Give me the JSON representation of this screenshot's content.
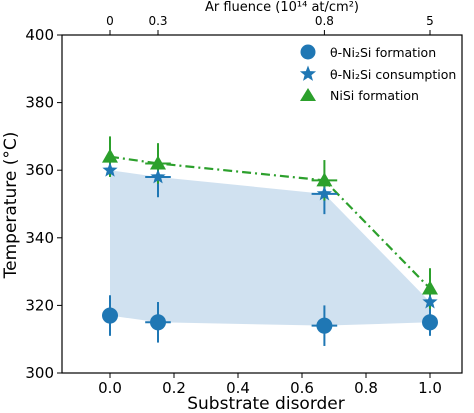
{
  "chart_data": {
    "type": "scatter",
    "xlabel": "Substrate disorder",
    "ylabel": "Temperature (°C)",
    "top_axis_label": "Ar fluence (10¹⁴ at/cm²)",
    "xlim": [
      -0.15,
      1.1
    ],
    "ylim": [
      300,
      400
    ],
    "x_ticks": [
      "0.0",
      "0.2",
      "0.4",
      "0.6",
      "0.8",
      "1.0"
    ],
    "x_tick_values": [
      0.0,
      0.2,
      0.4,
      0.6,
      0.8,
      1.0
    ],
    "y_ticks": [
      "300",
      "320",
      "340",
      "360",
      "380",
      "400"
    ],
    "y_tick_values": [
      300,
      320,
      340,
      360,
      380,
      400
    ],
    "top_ticks": [
      "0",
      "0.3",
      "0.8",
      "5"
    ],
    "top_tick_positions": [
      0.0,
      0.15,
      0.67,
      1.0
    ],
    "legend_position": "top-right",
    "series": [
      {
        "name": "θ-Ni₂Si formation",
        "marker": "circle",
        "color": "#1f77b4",
        "points": [
          {
            "x": 0.0,
            "y": 317,
            "xerr": 0.0,
            "yerr": 6
          },
          {
            "x": 0.15,
            "y": 315,
            "xerr": 0.04,
            "yerr": 6
          },
          {
            "x": 0.67,
            "y": 314,
            "xerr": 0.04,
            "yerr": 6
          },
          {
            "x": 1.0,
            "y": 315,
            "xerr": 0.0,
            "yerr": 4
          }
        ]
      },
      {
        "name": "θ-Ni₂Si consumption",
        "marker": "star",
        "color": "#1f77b4",
        "points": [
          {
            "x": 0.0,
            "y": 360,
            "xerr": 0.0,
            "yerr": 0
          },
          {
            "x": 0.15,
            "y": 358,
            "xerr": 0.04,
            "yerr": 6
          },
          {
            "x": 0.67,
            "y": 353,
            "xerr": 0.04,
            "yerr": 6
          },
          {
            "x": 1.0,
            "y": 321,
            "xerr": 0.0,
            "yerr": 3
          }
        ]
      },
      {
        "name": "NiSi formation",
        "marker": "triangle",
        "color": "#2ca02c",
        "line_style": "dash-dot",
        "points": [
          {
            "x": 0.0,
            "y": 364,
            "xerr": 0.0,
            "yerr": 6
          },
          {
            "x": 0.15,
            "y": 362,
            "xerr": 0.04,
            "yerr": 6
          },
          {
            "x": 0.67,
            "y": 357,
            "xerr": 0.04,
            "yerr": 6
          },
          {
            "x": 1.0,
            "y": 325,
            "xerr": 0.0,
            "yerr": 6
          }
        ]
      }
    ],
    "shaded_region": {
      "color": "#aac8e4",
      "upper": [
        [
          0.0,
          360
        ],
        [
          0.15,
          358
        ],
        [
          0.67,
          353
        ],
        [
          1.0,
          321
        ]
      ],
      "lower": [
        [
          0.0,
          317
        ],
        [
          0.15,
          315
        ],
        [
          0.67,
          314
        ],
        [
          1.0,
          315
        ]
      ]
    }
  }
}
